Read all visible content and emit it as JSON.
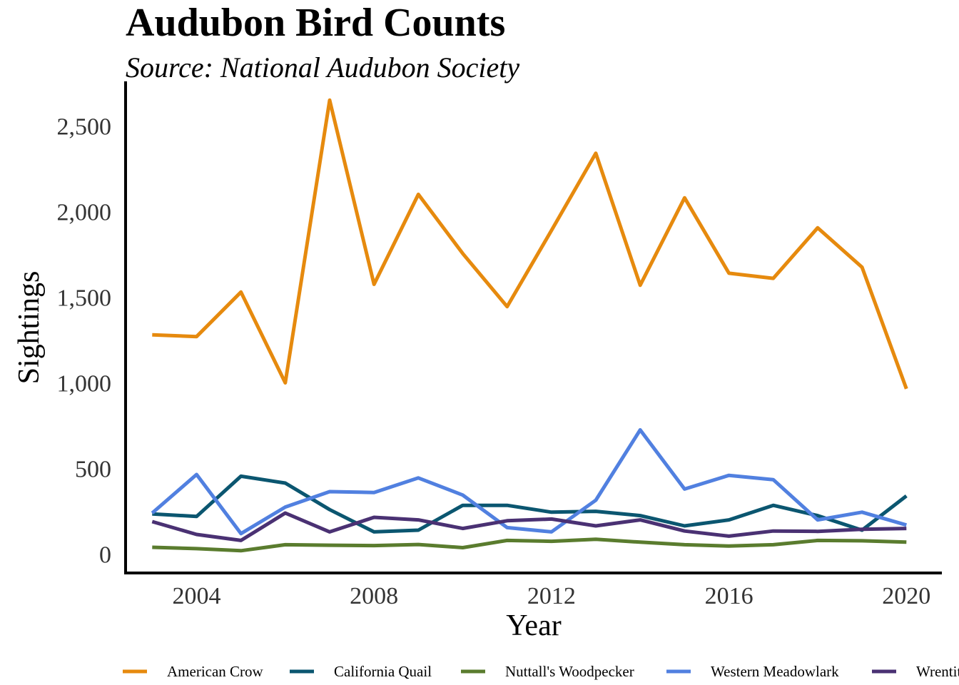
{
  "chart_data": {
    "type": "line",
    "title": "Audubon Bird Counts",
    "subtitle": "Source: National Audubon Society",
    "xlabel": "Year",
    "ylabel": "Sightings",
    "xlim": [
      2002.4,
      2020.8
    ],
    "ylim": [
      -110,
      2760
    ],
    "x_ticks": [
      2004,
      2008,
      2012,
      2016,
      2020
    ],
    "y_ticks": [
      0,
      500,
      1000,
      1500,
      2000,
      2500
    ],
    "y_tick_labels": [
      "0",
      "500",
      "1,000",
      "1,500",
      "2,000",
      "2,500"
    ],
    "grid": false,
    "legend_position": "bottom",
    "x": [
      2003,
      2004,
      2005,
      2006,
      2007,
      2008,
      2009,
      2010,
      2011,
      2012,
      2013,
      2014,
      2015,
      2016,
      2017,
      2018,
      2019,
      2020
    ],
    "series": [
      {
        "name": "American Crow",
        "color": "#E68A0E",
        "values": [
          1280,
          1270,
          1530,
          1000,
          2650,
          1575,
          2100,
          1755,
          1445,
          1890,
          2340,
          1570,
          2080,
          1640,
          1610,
          1905,
          1675,
          965
        ]
      },
      {
        "name": "California Quail",
        "color": "#0B5670",
        "values": [
          235,
          220,
          455,
          415,
          260,
          130,
          140,
          285,
          285,
          245,
          250,
          225,
          165,
          200,
          285,
          225,
          140,
          340
        ]
      },
      {
        "name": "Nuttall's Woodpecker",
        "color": "#5A7C2E",
        "values": [
          40,
          32,
          20,
          55,
          52,
          50,
          56,
          38,
          80,
          75,
          87,
          70,
          55,
          47,
          55,
          80,
          78,
          70
        ]
      },
      {
        "name": "Western Meadowlark",
        "color": "#5180E0",
        "values": [
          240,
          465,
          120,
          275,
          365,
          360,
          445,
          345,
          155,
          130,
          315,
          725,
          380,
          460,
          435,
          200,
          245,
          170
        ]
      },
      {
        "name": "Wrentit",
        "color": "#4A3173",
        "values": [
          190,
          115,
          80,
          240,
          130,
          215,
          200,
          150,
          195,
          205,
          165,
          200,
          135,
          105,
          135,
          133,
          145,
          150
        ]
      }
    ]
  }
}
